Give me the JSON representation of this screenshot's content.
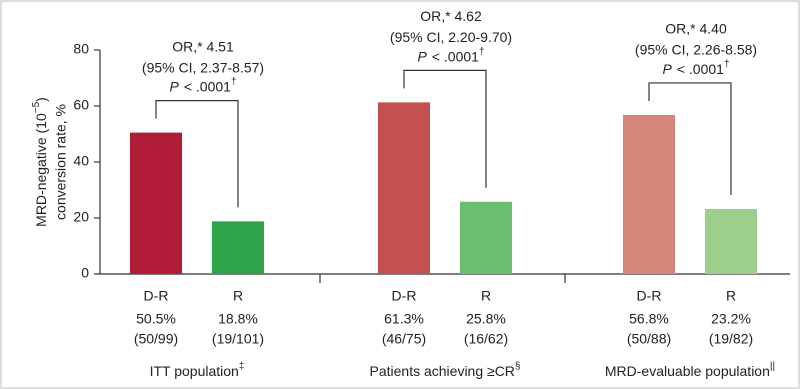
{
  "chart_data": {
    "type": "bar",
    "y_label": {
      "start": "MRD-negative (10",
      "sup": "−5",
      "end": ")",
      "line2": "conversion rate, %"
    },
    "ylim": [
      0,
      80
    ],
    "yticks": [
      0,
      20,
      40,
      60,
      80
    ],
    "groups": [
      {
        "name": "ITT population",
        "mark": "‡",
        "bars": [
          {
            "label": "D-R",
            "value": 50.5,
            "value_label": "50.5%",
            "count": "(50/99)",
            "color": "#b01c37"
          },
          {
            "label": "R",
            "value": 18.8,
            "value_label": "18.8%",
            "count": "(19/101)",
            "color": "#2ea44a"
          }
        ],
        "annotation": {
          "or": "OR,* 4.51",
          "ci": "(95% CI, 2.37-8.57)",
          "p": "P",
          "p_value": "< .0001",
          "p_mark": "†"
        }
      },
      {
        "name": "Patients achieving ≥CR",
        "mark": "§",
        "bars": [
          {
            "label": "D-R",
            "value": 61.3,
            "value_label": "61.3%",
            "count": "(46/75)",
            "color": "#c4514e"
          },
          {
            "label": "R",
            "value": 25.8,
            "value_label": "25.8%",
            "count": "(16/62)",
            "color": "#6abf6e"
          }
        ],
        "annotation": {
          "or": "OR,* 4.62",
          "ci": "(95% CI, 2.20-9.70)",
          "p": "P",
          "p_value": "< .0001",
          "p_mark": "†"
        }
      },
      {
        "name": "MRD-evaluable population",
        "mark": "||",
        "bars": [
          {
            "label": "D-R",
            "value": 56.8,
            "value_label": "56.8%",
            "count": "(50/88)",
            "color": "#d6857a"
          },
          {
            "label": "R",
            "value": 23.2,
            "value_label": "23.2%",
            "count": "(19/82)",
            "color": "#9ccf8c"
          }
        ],
        "annotation": {
          "or": "OR,* 4.40",
          "ci": "(95% CI, 2.26-8.58)",
          "p": "P",
          "p_value": "< .0001",
          "p_mark": "†"
        }
      }
    ]
  }
}
